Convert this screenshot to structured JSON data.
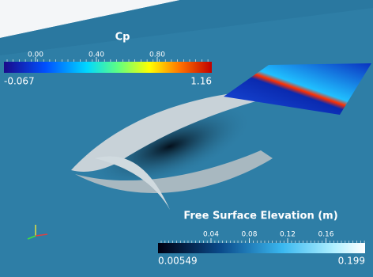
{
  "legends": [
    {
      "title": "Cp",
      "ticks": [
        "0.00",
        "0.40",
        "0.80"
      ],
      "min": "-0.067",
      "max": "1.16"
    },
    {
      "title": "Free Surface Elevation (m)",
      "ticks": [
        "0.04",
        "0.08",
        "0.12",
        "0.16"
      ],
      "min": "0.00549",
      "max": "0.199"
    }
  ]
}
